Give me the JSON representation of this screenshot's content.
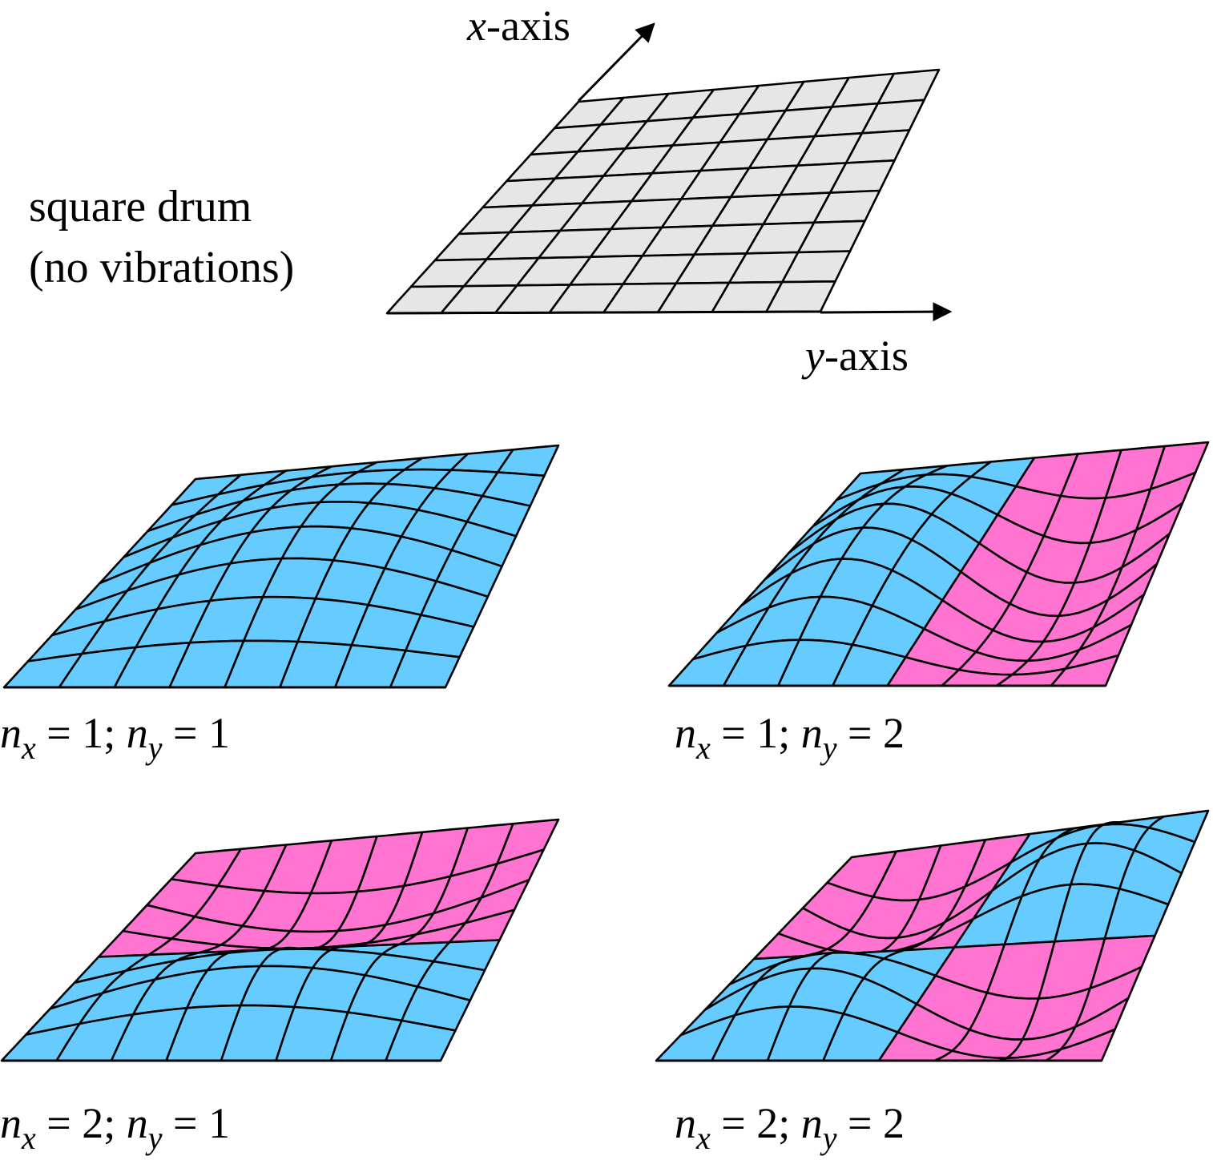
{
  "title": {
    "line1": "square drum",
    "line2": "(no vibrations)"
  },
  "axes": {
    "x_var": "x",
    "x_suffix": "-axis",
    "y_var": "y",
    "y_suffix": "-axis"
  },
  "modes": [
    {
      "nx": "1",
      "ny": "1",
      "label": {
        "n1": "n",
        "s1": "x",
        "eq1": " = 1; ",
        "n2": "n",
        "s2": "y",
        "eq2": " = 1"
      }
    },
    {
      "nx": "1",
      "ny": "2",
      "label": {
        "n1": "n",
        "s1": "x",
        "eq1": " = 1; ",
        "n2": "n",
        "s2": "y",
        "eq2": " = 2"
      }
    },
    {
      "nx": "2",
      "ny": "1",
      "label": {
        "n1": "n",
        "s1": "x",
        "eq1": " = 2; ",
        "n2": "n",
        "s2": "y",
        "eq2": " = 1"
      }
    },
    {
      "nx": "2",
      "ny": "2",
      "label": {
        "n1": "n",
        "s1": "x",
        "eq1": " = 2; ",
        "n2": "n",
        "s2": "y",
        "eq2": " = 2"
      }
    }
  ],
  "colors": {
    "flat": "#e6e6e6",
    "positive": "#66ccff",
    "negative": "#ff73d1",
    "line": "#000000"
  }
}
